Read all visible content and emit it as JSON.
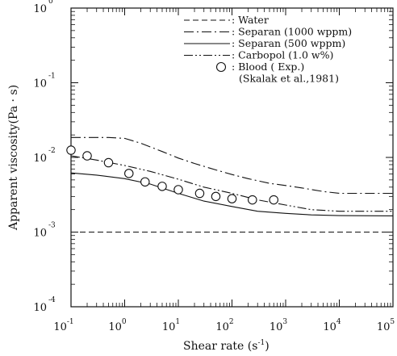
{
  "chart_data": {
    "type": "line",
    "title": "",
    "xlabel": "Shear rate (s",
    "xlabel_sup": "-1",
    "xlabel_tail": ")",
    "ylabel": "Apparent viscosity(Pa · s)",
    "xscale": "log",
    "yscale": "log",
    "xlim": [
      0.1,
      100000
    ],
    "ylim": [
      0.0001,
      1
    ],
    "grid": false,
    "legend_position": "top-right",
    "x_ticks": [
      {
        "base": "10",
        "exp": "-1"
      },
      {
        "base": "10",
        "exp": "0"
      },
      {
        "base": "10",
        "exp": "1"
      },
      {
        "base": "10",
        "exp": "2"
      },
      {
        "base": "10",
        "exp": "3"
      },
      {
        "base": "10",
        "exp": "4"
      },
      {
        "base": "10",
        "exp": "5"
      }
    ],
    "y_ticks": [
      {
        "base": "10",
        "exp": "-4"
      },
      {
        "base": "10",
        "exp": "-3"
      },
      {
        "base": "10",
        "exp": "-2"
      },
      {
        "base": "10",
        "exp": "-1"
      },
      {
        "base": "10",
        "exp": "0"
      }
    ],
    "series": [
      {
        "name": ": Water",
        "style": "dashed",
        "x": [
          0.1,
          100000
        ],
        "y": [
          0.001,
          0.001
        ]
      },
      {
        "name": ": Separan (1000 wppm)",
        "style": "dashdot",
        "x": [
          0.1,
          0.5,
          1,
          2,
          5,
          10,
          20,
          50,
          100,
          200,
          500,
          1000,
          2000,
          5000,
          10000,
          20000,
          100000
        ],
        "y": [
          0.0185,
          0.0185,
          0.018,
          0.0155,
          0.012,
          0.0098,
          0.0083,
          0.0068,
          0.0059,
          0.0052,
          0.0045,
          0.0042,
          0.0039,
          0.0035,
          0.0033,
          0.0033,
          0.0033
        ]
      },
      {
        "name": ": Separan (500 wppm)",
        "style": "solid",
        "x": [
          0.1,
          0.3,
          1,
          3,
          10,
          30,
          100,
          300,
          1000,
          3000,
          10000,
          100000
        ],
        "y": [
          0.0062,
          0.0058,
          0.0052,
          0.0044,
          0.0033,
          0.0026,
          0.0022,
          0.0019,
          0.00178,
          0.0017,
          0.00166,
          0.00165
        ]
      },
      {
        "name": ": Carbopol (1.0 w%)",
        "style": "dashdotdot",
        "x": [
          0.1,
          0.3,
          1,
          3,
          10,
          30,
          100,
          300,
          1000,
          3000,
          10000,
          100000
        ],
        "y": [
          0.0105,
          0.0092,
          0.0078,
          0.0065,
          0.0051,
          0.004,
          0.0033,
          0.0027,
          0.0023,
          0.002,
          0.0019,
          0.0019
        ]
      },
      {
        "name": ": Blood ( Exp.)",
        "style": "markers",
        "marker": "circle",
        "x": [
          0.1,
          0.2,
          0.5,
          1.2,
          2.4,
          5,
          10,
          25,
          50,
          100,
          240,
          600
        ],
        "y": [
          0.0125,
          0.0105,
          0.0085,
          0.0061,
          0.0047,
          0.0041,
          0.0037,
          0.0033,
          0.003,
          0.0028,
          0.0027,
          0.0027
        ]
      }
    ],
    "legend_note": "(Skalak et al.,1981)"
  }
}
